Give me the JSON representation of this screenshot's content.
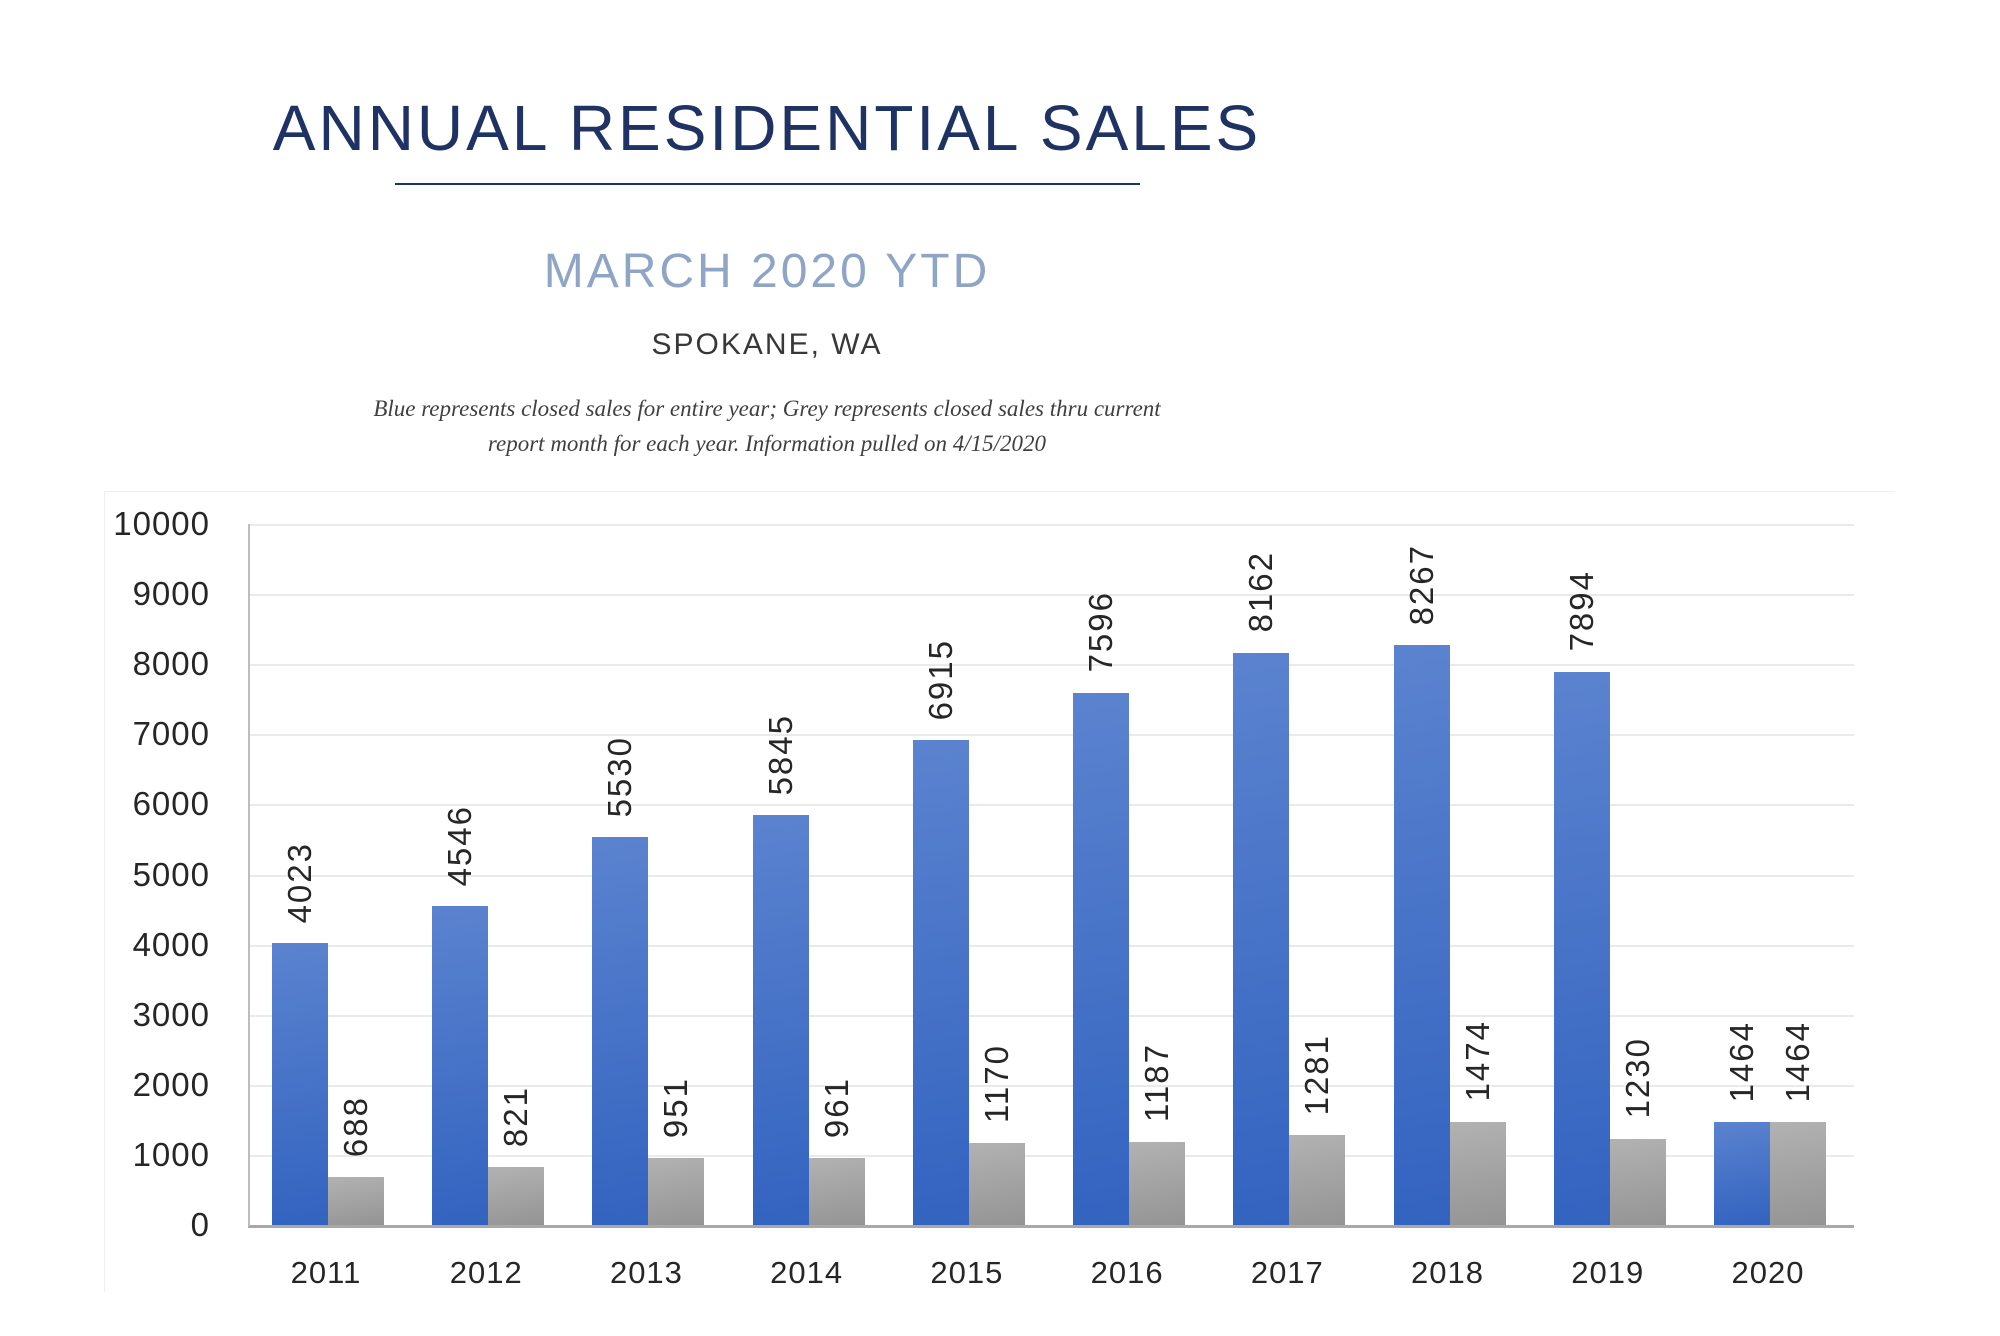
{
  "header": {
    "title": "ANNUAL RESIDENTIAL SALES",
    "subtitle": "MARCH 2020 YTD",
    "location": "SPOKANE, WA",
    "note_line1": "Blue represents closed sales for entire year; Grey represents closed sales thru current",
    "note_line2": "report month for each year.  Information pulled on 4/15/2020"
  },
  "colors": {
    "title_navy": "#1e3263",
    "subtitle_blue_grey": "#8fa5c6",
    "bar_blue_top": "#5b83cf",
    "bar_blue_bottom": "#3263c0",
    "bar_grey_top": "#b2b2b2",
    "bar_grey_bottom": "#949494",
    "gridline": "#e9eaee",
    "y_axis_line": "#bdbdbd",
    "x_axis_line": "#a8a8a8",
    "label_text": "#262626"
  },
  "chart_data": {
    "type": "bar",
    "title": "",
    "xlabel": "",
    "ylabel": "",
    "categories": [
      "2011",
      "2012",
      "2013",
      "2014",
      "2015",
      "2016",
      "2017",
      "2018",
      "2019",
      "2020"
    ],
    "series": [
      {
        "name": "Closed sales for entire year (blue)",
        "key": "blue",
        "values": [
          4023,
          4546,
          5530,
          5845,
          6915,
          7596,
          8162,
          8267,
          7894,
          1464
        ]
      },
      {
        "name": "Closed sales thru current report month (grey)",
        "key": "grey",
        "values": [
          688,
          821,
          951,
          961,
          1170,
          1187,
          1281,
          1474,
          1230,
          1464
        ]
      }
    ],
    "ylim": [
      0,
      10000
    ],
    "yticks": [
      0,
      1000,
      2000,
      3000,
      4000,
      5000,
      6000,
      7000,
      8000,
      9000,
      10000
    ],
    "grid": true,
    "legend_position": "none",
    "data_labels": "rotated-90-above-bars"
  }
}
